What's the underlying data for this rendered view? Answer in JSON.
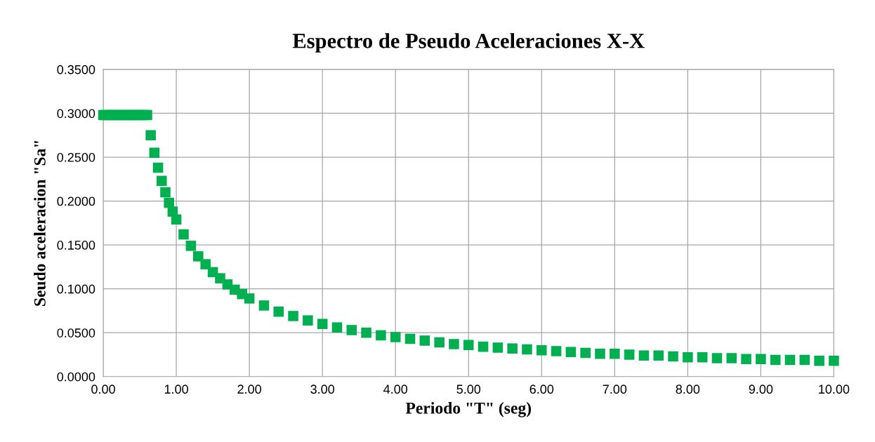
{
  "chart_data": {
    "type": "scatter",
    "title": "Espectro de Pseudo Aceleraciones X-X",
    "xlabel": "Periodo \"T\" (seg)",
    "ylabel": "Seudo aceleracion \"Sa\"",
    "x": [
      0,
      0.05,
      0.1,
      0.15,
      0.2,
      0.25,
      0.3,
      0.35,
      0.4,
      0.45,
      0.5,
      0.55,
      0.6,
      0.65,
      0.7,
      0.75,
      0.8,
      0.85,
      0.9,
      0.95,
      1.0,
      1.1,
      1.2,
      1.3,
      1.4,
      1.5,
      1.6,
      1.7,
      1.8,
      1.9,
      2.0,
      2.2,
      2.4,
      2.6,
      2.8,
      3.0,
      3.2,
      3.4,
      3.6,
      3.8,
      4.0,
      4.2,
      4.4,
      4.6,
      4.8,
      5.0,
      5.2,
      5.4,
      5.6,
      5.8,
      6.0,
      6.2,
      6.4,
      6.6,
      6.8,
      7.0,
      7.2,
      7.4,
      7.6,
      7.8,
      8.0,
      8.2,
      8.4,
      8.6,
      8.8,
      9.0,
      9.2,
      9.4,
      9.6,
      9.8,
      10.0
    ],
    "series": [
      {
        "color": "#00b050",
        "values": [
          0.298,
          0.298,
          0.298,
          0.298,
          0.298,
          0.298,
          0.298,
          0.298,
          0.298,
          0.298,
          0.298,
          0.298,
          0.298,
          0.275,
          0.255,
          0.238,
          0.223,
          0.21,
          0.198,
          0.188,
          0.179,
          0.162,
          0.149,
          0.137,
          0.128,
          0.119,
          0.112,
          0.105,
          0.099,
          0.094,
          0.089,
          0.081,
          0.074,
          0.069,
          0.064,
          0.06,
          0.056,
          0.053,
          0.05,
          0.047,
          0.045,
          0.043,
          0.041,
          0.039,
          0.037,
          0.036,
          0.034,
          0.033,
          0.032,
          0.031,
          0.03,
          0.029,
          0.028,
          0.027,
          0.026,
          0.026,
          0.025,
          0.024,
          0.024,
          0.023,
          0.022,
          0.022,
          0.021,
          0.021,
          0.02,
          0.02,
          0.019,
          0.019,
          0.019,
          0.018,
          0.018
        ]
      }
    ],
    "xlim": [
      0,
      10
    ],
    "ylim": [
      0,
      0.35
    ],
    "xticks": [
      {
        "value": 0,
        "label": "0.00"
      },
      {
        "value": 1,
        "label": "1.00"
      },
      {
        "value": 2,
        "label": "2.00"
      },
      {
        "value": 3,
        "label": "3.00"
      },
      {
        "value": 4,
        "label": "4.00"
      },
      {
        "value": 5,
        "label": "5.00"
      },
      {
        "value": 6,
        "label": "6.00"
      },
      {
        "value": 7,
        "label": "7.00"
      },
      {
        "value": 8,
        "label": "8.00"
      },
      {
        "value": 9,
        "label": "9.00"
      },
      {
        "value": 10,
        "label": "10.00"
      }
    ],
    "yticks": [
      {
        "value": 0,
        "label": "0.0000"
      },
      {
        "value": 0.05,
        "label": "0.0500"
      },
      {
        "value": 0.1,
        "label": "0.1000"
      },
      {
        "value": 0.15,
        "label": "0.1500"
      },
      {
        "value": 0.2,
        "label": "0.2000"
      },
      {
        "value": 0.25,
        "label": "0.2500"
      },
      {
        "value": 0.3,
        "label": "0.3000"
      },
      {
        "value": 0.35,
        "label": "0.3500"
      }
    ],
    "grid": true,
    "marker": "square",
    "legend": false
  }
}
